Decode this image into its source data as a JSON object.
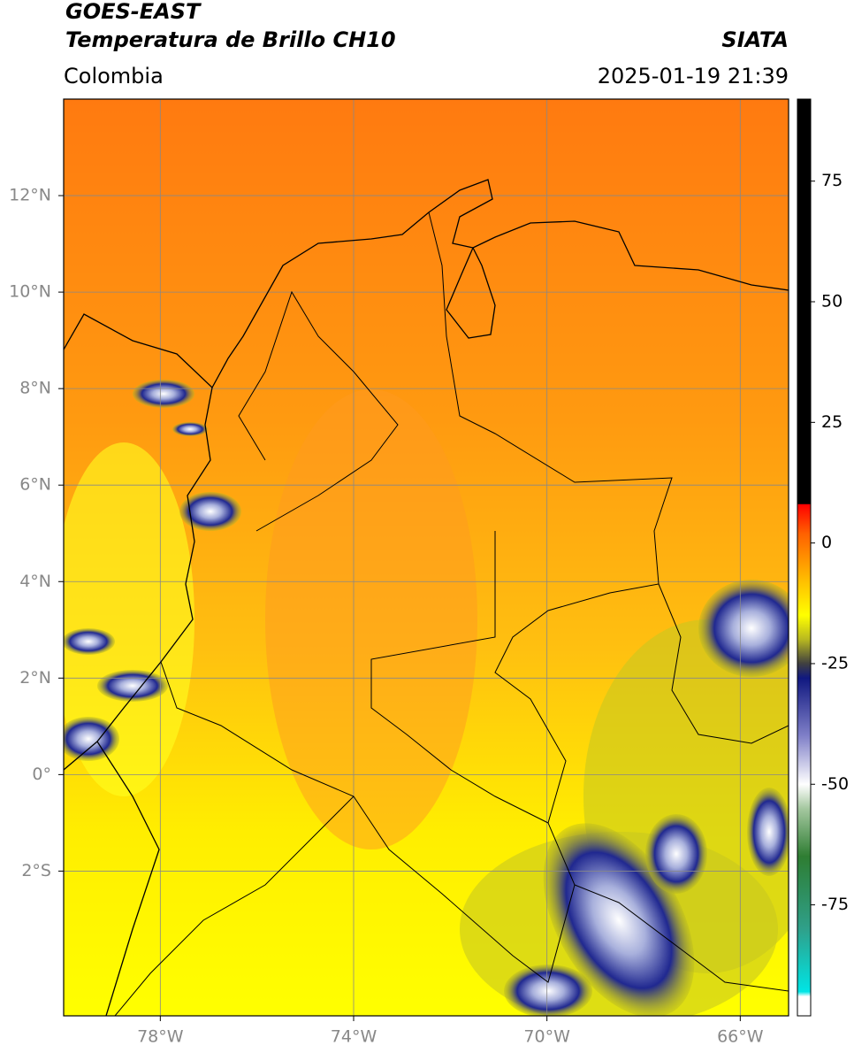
{
  "header": {
    "title": "GOES-EAST",
    "subtitle": "Temperatura de Brillo CH10",
    "region": "Colombia",
    "source": "SIATA",
    "datetime": "2025-01-19 21:39"
  },
  "map": {
    "xlim": [
      -80,
      -65
    ],
    "ylim": [
      -5,
      14
    ],
    "xticks": [
      {
        "value": -78,
        "label": "78°W"
      },
      {
        "value": -74,
        "label": "74°W"
      },
      {
        "value": -70,
        "label": "70°W"
      },
      {
        "value": -66,
        "label": "66°W"
      }
    ],
    "yticks": [
      {
        "value": 12,
        "label": "12°N"
      },
      {
        "value": 10,
        "label": "10°N"
      },
      {
        "value": 8,
        "label": "8°N"
      },
      {
        "value": 6,
        "label": "6°N"
      },
      {
        "value": 4,
        "label": "4°N"
      },
      {
        "value": 2,
        "label": "2°N"
      },
      {
        "value": 0,
        "label": "0°"
      },
      {
        "value": -2,
        "label": "2°S"
      }
    ],
    "grid": true
  },
  "colorbar": {
    "lim": [
      -98,
      92
    ],
    "ticks": [
      75,
      50,
      25,
      0,
      -25,
      -50,
      -75
    ],
    "stops": [
      {
        "value": -98,
        "color": "#ffffff"
      },
      {
        "value": -94,
        "color": "#ffffff"
      },
      {
        "value": -93,
        "color": "#00e5e5"
      },
      {
        "value": -80,
        "color": "#2fa08a"
      },
      {
        "value": -65,
        "color": "#2e7d32"
      },
      {
        "value": -55,
        "color": "#a5c8a0"
      },
      {
        "value": -50,
        "color": "#ffffff"
      },
      {
        "value": -40,
        "color": "#8080c8"
      },
      {
        "value": -28,
        "color": "#101880"
      },
      {
        "value": -25,
        "color": "#404040"
      },
      {
        "value": -20,
        "color": "#b8b820"
      },
      {
        "value": -15,
        "color": "#ffff00"
      },
      {
        "value": -8,
        "color": "#ffc000"
      },
      {
        "value": 2,
        "color": "#ff6000"
      },
      {
        "value": 8,
        "color": "#ff0000"
      },
      {
        "value": 8.1,
        "color": "#000000"
      },
      {
        "value": 92,
        "color": "#000000"
      }
    ]
  }
}
